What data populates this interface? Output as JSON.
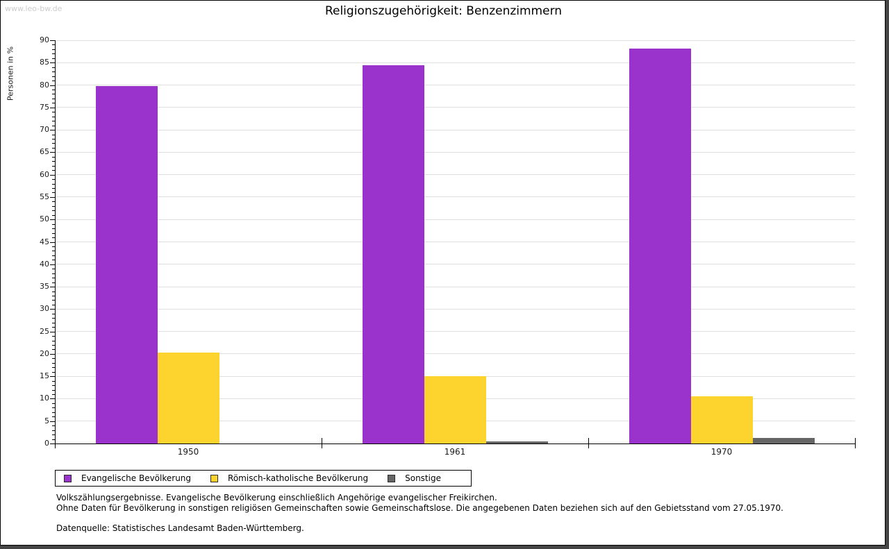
{
  "watermark": "www.leo-bw.de",
  "title": "Religionszugehörigkeit: Benzenzimmern",
  "chart_data": {
    "type": "bar",
    "title": "Religionszugehörigkeit: Benzenzimmern",
    "xlabel": "",
    "ylabel": "Personen in %",
    "ylim": [
      0,
      90
    ],
    "ytick_step": 5,
    "yminor_step": 1,
    "grid": true,
    "legend_position": "bottom",
    "categories": [
      "1950",
      "1961",
      "1970"
    ],
    "series": [
      {
        "name": "Evangelische Bevölkerung",
        "color": "#9933cc",
        "values": [
          79.7,
          84.5,
          88.1
        ]
      },
      {
        "name": "Römisch-katholische Bevölkerung",
        "color": "#fdd42e",
        "values": [
          20.3,
          15.0,
          10.6
        ]
      },
      {
        "name": "Sonstige",
        "color": "#666666",
        "values": [
          0.0,
          0.5,
          1.3
        ]
      }
    ]
  },
  "footnotes": {
    "line1": "Volkszählungsergebnisse. Evangelische Bevölkerung einschließlich Angehörige evangelischer Freikirchen.",
    "line2": "Ohne Daten für Bevölkerung in sonstigen religiösen Gemeinschaften sowie Gemeinschaftslose. Die angegebenen Daten beziehen sich auf den Gebietsstand vom 27.05.1970.",
    "source": "Datenquelle: Statistisches Landesamt Baden-Württemberg."
  },
  "colors": {
    "background": "#ffffff",
    "frame_shadow": "#454545",
    "axis": "#000000",
    "gridline": "#e0e0e0",
    "watermark": "#cccccc"
  }
}
